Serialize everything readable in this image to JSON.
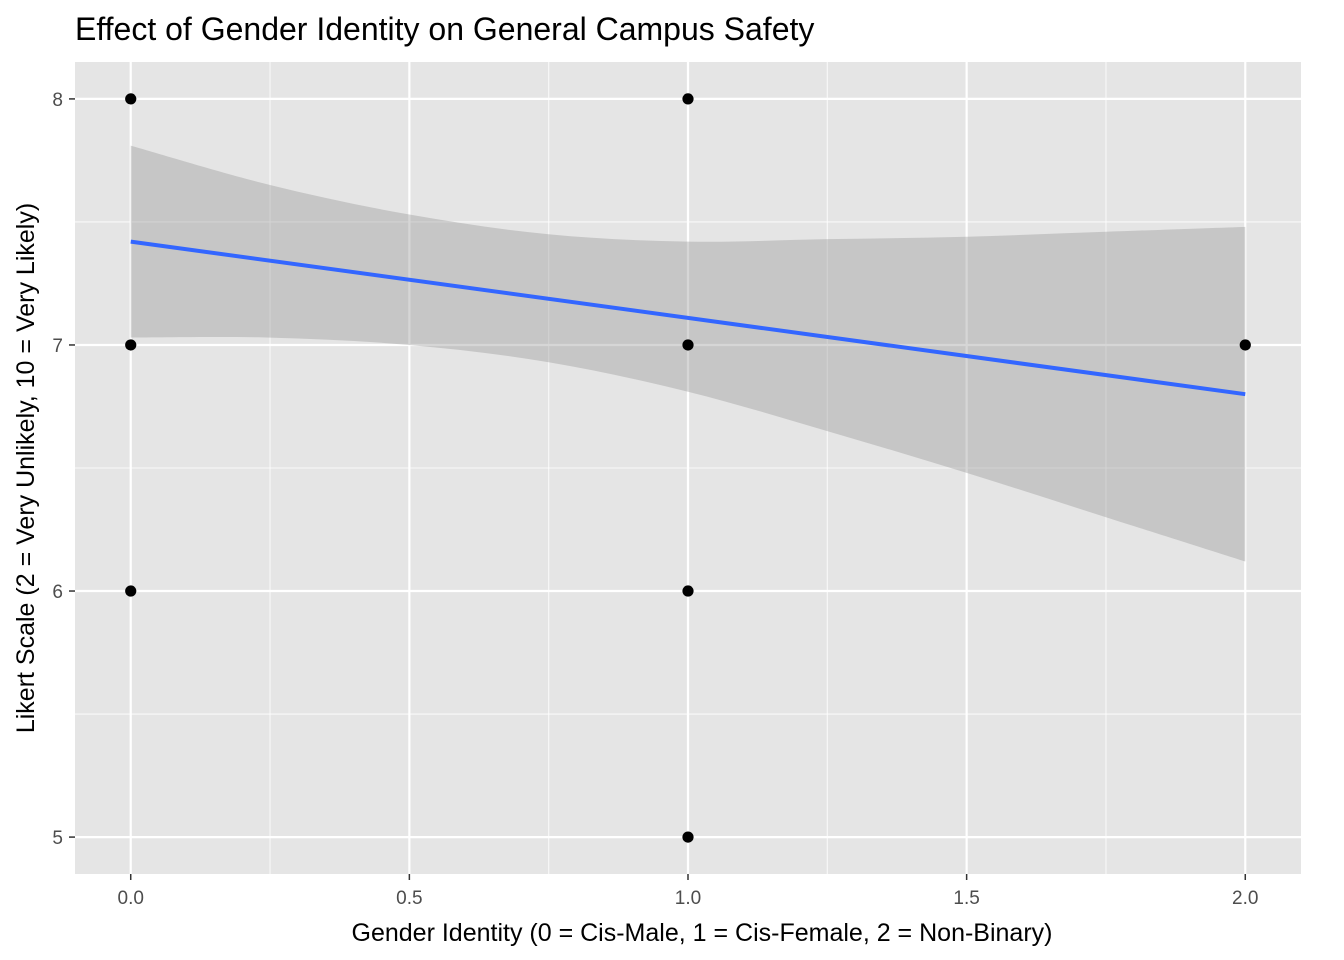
{
  "chart_data": {
    "type": "scatter",
    "title": "Effect of Gender Identity on General Campus Safety",
    "xlabel": "Gender Identity (0 = Cis-Male, 1 = Cis-Female, 2 = Non-Binary)",
    "ylabel": "Likert Scale (2 = Very Unlikely, 10 = Very Likely)",
    "xlim": [
      -0.1,
      2.1
    ],
    "ylim": [
      4.85,
      8.15
    ],
    "x_major_ticks": [
      0,
      0.5,
      1,
      1.5,
      2
    ],
    "x_tick_labels": [
      "0.0",
      "0.5",
      "1.0",
      "1.5",
      "2.0"
    ],
    "x_minor_ticks": [
      0.25,
      0.75,
      1.25,
      1.75
    ],
    "y_major_ticks": [
      5,
      6,
      7,
      8
    ],
    "y_tick_labels": [
      "5",
      "6",
      "7",
      "8"
    ],
    "y_minor_ticks": [
      5.5,
      6.5,
      7.5
    ],
    "grid": true,
    "points": [
      {
        "x": 0,
        "y": 8
      },
      {
        "x": 0,
        "y": 7
      },
      {
        "x": 0,
        "y": 6
      },
      {
        "x": 1,
        "y": 8
      },
      {
        "x": 1,
        "y": 7
      },
      {
        "x": 1,
        "y": 6
      },
      {
        "x": 1,
        "y": 5
      },
      {
        "x": 2,
        "y": 7
      }
    ],
    "trend": {
      "method": "linear regression",
      "x": [
        0,
        2
      ],
      "y": [
        7.42,
        6.8
      ]
    },
    "confidence_band": {
      "x": [
        0,
        0.25,
        0.5,
        0.75,
        1,
        1.25,
        1.5,
        1.75,
        2
      ],
      "upper": [
        7.81,
        7.65,
        7.53,
        7.45,
        7.42,
        7.43,
        7.44,
        7.46,
        7.48
      ],
      "lower": [
        7.03,
        7.03,
        7.0,
        6.93,
        6.81,
        6.65,
        6.48,
        6.3,
        6.12
      ]
    },
    "colors": {
      "panel_background": "#e5e5e5",
      "grid": "#ffffff",
      "points": "#000000",
      "trend_line": "#3366ff",
      "confidence_band": "#999999",
      "tick_label": "#4d4d4d",
      "tick_mark": "#333333"
    }
  }
}
